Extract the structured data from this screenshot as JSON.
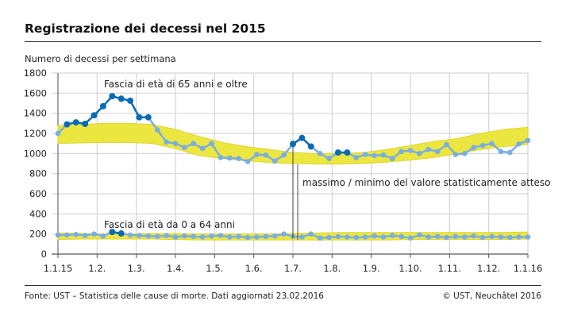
{
  "title": "Registrazione dei decessi nel 2015",
  "footer": {
    "source": "Fonte: UST – Statistica delle cause di morte. Dati aggiornati 23.02.2016",
    "copyright": "© UST, Neuchâtel 2016"
  },
  "chart_data": {
    "type": "line",
    "ylabel": "Numero di decessi per settimana",
    "ylim": [
      0,
      1800
    ],
    "yticks": [
      0,
      200,
      400,
      600,
      800,
      1000,
      1200,
      1400,
      1600,
      1800
    ],
    "xticks": [
      "1.1.15",
      "1.2.",
      "1.3.",
      "1.4.",
      "1.5.",
      "1.6.",
      "1.7.",
      "1.8.",
      "1.9.",
      "1.10.",
      "1.11.",
      "1.12.",
      "1.1.16"
    ],
    "grid": true,
    "annotation": "massimo / minimo del valore statisticamente atteso",
    "colors": {
      "band": "#ece640",
      "line": "#7aaee0",
      "outside": "#0a6bb5"
    },
    "series": [
      {
        "name": "Fascia di età di 65 anni e oltre",
        "values": [
          1200,
          1290,
          1310,
          1295,
          1380,
          1470,
          1570,
          1545,
          1525,
          1360,
          1360,
          1235,
          1115,
          1100,
          1060,
          1100,
          1050,
          1100,
          960,
          955,
          950,
          920,
          990,
          985,
          925,
          985,
          1095,
          1155,
          1070,
          1000,
          950,
          1010,
          1010,
          960,
          990,
          980,
          985,
          950,
          1020,
          1030,
          1000,
          1040,
          1020,
          1090,
          990,
          1000,
          1060,
          1080,
          1100,
          1020,
          1010,
          1095,
          1130
        ],
        "band_upper": [
          1280,
          1290,
          1300,
          1300,
          1290,
          1240,
          1170,
          1110,
          1070,
          1040,
          1010,
          1000,
          1000,
          1010,
          1040,
          1080,
          1120,
          1150,
          1200,
          1240,
          1260
        ],
        "band_lower": [
          1100,
          1105,
          1110,
          1110,
          1100,
          1050,
          980,
          950,
          930,
          910,
          900,
          895,
          895,
          900,
          915,
          935,
          960,
          1000,
          1040,
          1070,
          1090
        ]
      },
      {
        "name": "Fascia di età da 0 a 64 anni",
        "values": [
          190,
          190,
          195,
          185,
          200,
          180,
          220,
          205,
          190,
          185,
          180,
          175,
          185,
          170,
          180,
          175,
          170,
          180,
          185,
          170,
          175,
          165,
          170,
          175,
          180,
          200,
          175,
          170,
          200,
          160,
          165,
          175,
          170,
          165,
          170,
          180,
          170,
          185,
          175,
          160,
          190,
          170,
          175,
          165,
          175,
          170,
          180,
          165,
          175,
          170,
          165,
          170,
          170
        ],
        "band_upper": [
          210,
          205,
          200,
          200,
          205,
          205,
          200,
          200,
          200,
          200,
          205,
          210,
          215,
          215,
          215,
          215,
          215,
          215,
          215,
          215,
          220
        ],
        "band_lower": [
          145,
          150,
          150,
          150,
          150,
          145,
          140,
          140,
          140,
          140,
          140,
          140,
          140,
          140,
          140,
          145,
          145,
          145,
          145,
          145,
          150
        ]
      }
    ]
  }
}
